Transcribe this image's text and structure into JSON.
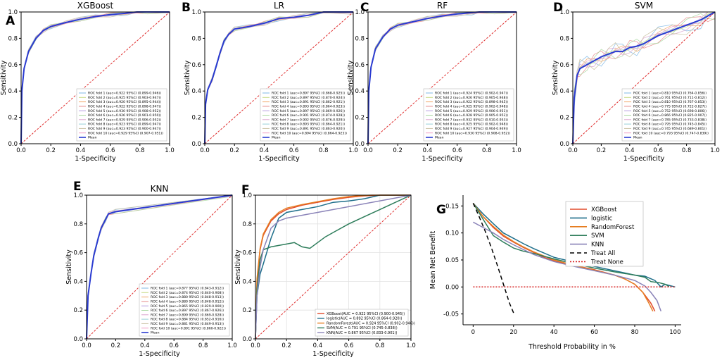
{
  "fold_colors": [
    "#7fb8e6",
    "#c8da86",
    "#f0a86a",
    "#e68a8a",
    "#b7a0e0",
    "#a8d8a0",
    "#dba6cf",
    "#9ad0d8",
    "#c8c0a0",
    "#ee9cc4"
  ],
  "chart_data": [
    {
      "id": "A",
      "type": "line",
      "title": "XGBoost",
      "xlabel": "1-Specificity",
      "ylabel": "Sensitivity",
      "xlim": [
        0,
        1
      ],
      "ylim": [
        0,
        1
      ],
      "ticks": [
        "0.0",
        "0.2",
        "0.4",
        "0.6",
        "0.8",
        "1.0"
      ],
      "chance_line": true,
      "mean_curve": {
        "name": "Mean",
        "color": "#2a3bd1",
        "x": [
          0,
          0.005,
          0.02,
          0.05,
          0.1,
          0.15,
          0.2,
          0.3,
          0.4,
          0.5,
          0.6,
          0.7,
          0.78,
          0.85,
          1.0
        ],
        "y": [
          0,
          0.4,
          0.57,
          0.7,
          0.8,
          0.86,
          0.89,
          0.92,
          0.945,
          0.965,
          0.98,
          0.99,
          1.0,
          1.0,
          1.0
        ]
      },
      "folds": [
        {
          "label": "ROC fold    1  (auc=0.922 95%CI  (0.899-0.946))"
        },
        {
          "label": "ROC fold    2  (auc=0.925 95%CI  (0.903-0.947))"
        },
        {
          "label": "ROC fold    3  (auc=0.920 95%CI  (0.895-0.944))"
        },
        {
          "label": "ROC fold    4  (auc=0.922 95%CI  (0.898-0.947))"
        },
        {
          "label": "ROC fold    5  (auc=0.930 95%CI  (0.908-0.952))"
        },
        {
          "label": "ROC fold    6  (auc=0.926 95%CI  (0.901-0.950))"
        },
        {
          "label": "ROC fold    7  (auc=0.929 95%CI  (0.906-0.952))"
        },
        {
          "label": "ROC fold    8  (auc=0.923 95%CI  (0.899-0.947))"
        },
        {
          "label": "ROC fold    9  (auc=0.923 95%CI  (0.900-0.947))"
        },
        {
          "label": "ROC fold   10  (auc=0.929 95%CI  (0.907-0.951))"
        }
      ],
      "mean_label": "Mean"
    },
    {
      "id": "B",
      "type": "line",
      "title": "LR",
      "xlabel": "1-Specificity",
      "ylabel": "Sensitivity",
      "xlim": [
        0,
        1
      ],
      "ylim": [
        0,
        1
      ],
      "ticks": [
        "0.0",
        "0.2",
        "0.4",
        "0.6",
        "0.8",
        "1.0"
      ],
      "chance_line": true,
      "mean_curve": {
        "name": "Mean",
        "color": "#2a3bd1",
        "x": [
          0,
          0.005,
          0.02,
          0.05,
          0.08,
          0.1,
          0.13,
          0.16,
          0.2,
          0.3,
          0.4,
          0.5,
          0.6,
          0.7,
          0.8,
          1.0
        ],
        "y": [
          0,
          0.3,
          0.41,
          0.49,
          0.6,
          0.68,
          0.78,
          0.83,
          0.87,
          0.89,
          0.915,
          0.95,
          0.96,
          0.975,
          1.0,
          1.0
        ]
      },
      "folds": [
        {
          "label": "ROC fold    1  (auc=0.897 95%CI  (0.868-0.925))"
        },
        {
          "label": "ROC fold    2  (auc=0.897 95%CI  (0.870-0.924))"
        },
        {
          "label": "ROC fold    3  (auc=0.891 95%CI  (0.862-0.921))"
        },
        {
          "label": "ROC fold    4  (auc=0.893 95%CI  (0.864-0.923))"
        },
        {
          "label": "ROC fold    5  (auc=0.897 95%CI  (0.869-0.926))"
        },
        {
          "label": "ROC fold    6  (auc=0.901 95%CI  (0.874-0.928))"
        },
        {
          "label": "ROC fold    7  (auc=0.902 95%CI  (0.876-0.929))"
        },
        {
          "label": "ROC fold    8  (auc=0.893 95%CI  (0.864-0.921))"
        },
        {
          "label": "ROC fold    9  (auc=0.891 95%CI  (0.863-0.920))"
        },
        {
          "label": "ROC fold   10  (auc=0.894 95%CI  (0.864-0.923))"
        }
      ],
      "mean_label": "Mean"
    },
    {
      "id": "C",
      "type": "line",
      "title": "RF",
      "xlabel": "1-Specificity",
      "ylabel": "Sensitivity",
      "xlim": [
        0,
        1
      ],
      "ylim": [
        0,
        1
      ],
      "ticks": [
        "0.0",
        "0.2",
        "0.4",
        "0.6",
        "0.8",
        "1.0"
      ],
      "chance_line": true,
      "mean_curve": {
        "name": "Mean",
        "color": "#2a3bd1",
        "x": [
          0,
          0.005,
          0.02,
          0.05,
          0.1,
          0.15,
          0.2,
          0.3,
          0.4,
          0.5,
          0.6,
          0.7,
          0.75,
          0.85,
          1.0
        ],
        "y": [
          0,
          0.4,
          0.58,
          0.72,
          0.81,
          0.87,
          0.9,
          0.925,
          0.95,
          0.97,
          0.985,
          0.995,
          1.0,
          1.0,
          1.0
        ]
      },
      "folds": [
        {
          "label": "ROC fold    1  (auc=0.924 95%CI  (0.902-0.947))"
        },
        {
          "label": "ROC fold    2  (auc=0.926 95%CI  (0.905-0.948))"
        },
        {
          "label": "ROC fold    3  (auc=0.922 95%CI  (0.898-0.945))"
        },
        {
          "label": "ROC fold    4  (auc=0.925 95%CI  (0.902-0.948))"
        },
        {
          "label": "ROC fold    5  (auc=0.929 95%CI  (0.906-0.951))"
        },
        {
          "label": "ROC fold    6  (auc=0.928 95%CI  (0.905-0.952))"
        },
        {
          "label": "ROC fold    7  (auc=0.932 95%CI  (0.910-0.953))"
        },
        {
          "label": "ROC fold    8  (auc=0.925 95%CI  (0.902-0.948))"
        },
        {
          "label": "ROC fold    9  (auc=0.927 95%CI  (0.904-0.949))"
        },
        {
          "label": "ROC fold   10  (auc=0.930 95%CI  (0.908-0.952))"
        }
      ],
      "mean_label": "Mean"
    },
    {
      "id": "D",
      "type": "line",
      "title": "SVM",
      "xlabel": "1-Specificity",
      "ylabel": "Sensitivity",
      "xlim": [
        0,
        1
      ],
      "ylim": [
        0,
        1
      ],
      "ticks": [
        "0.0",
        "0.2",
        "0.4",
        "0.6",
        "0.8",
        "1.0"
      ],
      "chance_line": true,
      "mean_curve": {
        "name": "Mean",
        "color": "#2a3bd1",
        "x": [
          0,
          0.01,
          0.03,
          0.05,
          0.1,
          0.15,
          0.2,
          0.25,
          0.3,
          0.35,
          0.4,
          0.45,
          0.5,
          0.6,
          0.7,
          0.8,
          0.9,
          0.95,
          1.0
        ],
        "y": [
          0,
          0.35,
          0.52,
          0.57,
          0.6,
          0.63,
          0.66,
          0.68,
          0.7,
          0.7,
          0.73,
          0.74,
          0.76,
          0.82,
          0.86,
          0.9,
          0.94,
          0.97,
          1.0
        ]
      },
      "folds": [
        {
          "label": "ROC fold    1  (auc=0.810 95%CI  (0.764-0.856))"
        },
        {
          "label": "ROC fold    2  (auc=0.761 95%CI  (0.711-0.812))"
        },
        {
          "label": "ROC fold    3  (auc=0.810 95%CI  (0.767-0.853))"
        },
        {
          "label": "ROC fold    4  (auc=0.775 95%CI  (0.722-0.827))"
        },
        {
          "label": "ROC fold    5  (auc=0.752 95%CI  (0.698-0.806))"
        },
        {
          "label": "ROC fold    6  (auc=0.866 95%CI  (0.825-0.907))"
        },
        {
          "label": "ROC fold    7  (auc=0.785 95%CI  (0.733-0.838))"
        },
        {
          "label": "ROC fold    8  (auc=0.795 95%CI  (0.745-0.845))"
        },
        {
          "label": "ROC fold    9  (auc=0.745 95%CI  (0.689-0.801))"
        },
        {
          "label": "ROC fold   10  (auc=0.793 95%CI  (0.747-0.839))"
        }
      ],
      "mean_label": "Mean"
    },
    {
      "id": "E",
      "type": "line",
      "title": "KNN",
      "xlabel": "1-Specificity",
      "ylabel": "Sensitivity",
      "xlim": [
        0,
        1
      ],
      "ylim": [
        0,
        1
      ],
      "ticks": [
        "0.0",
        "0.2",
        "0.4",
        "0.6",
        "0.8",
        "1.0"
      ],
      "chance_line": true,
      "mean_curve": {
        "name": "Mean",
        "color": "#2a3bd1",
        "x": [
          0,
          0.01,
          0.03,
          0.05,
          0.08,
          0.1,
          0.13,
          0.15,
          0.2,
          1.0
        ],
        "y": [
          0,
          0.3,
          0.45,
          0.58,
          0.7,
          0.77,
          0.83,
          0.87,
          0.885,
          1.0
        ]
      },
      "folds": [
        {
          "label": "ROC fold    1  (auc=0.877 95%CI  (0.843-0.912))"
        },
        {
          "label": "ROC fold    2  (auc=0.874 95%CI  (0.840-0.908))"
        },
        {
          "label": "ROC fold    3  (auc=0.880 95%CI  (0.848-0.913))"
        },
        {
          "label": "ROC fold    4  (auc=0.880 95%CI  (0.848-0.912))"
        },
        {
          "label": "ROC fold    5  (auc=0.865 95%CI  (0.829-0.900))"
        },
        {
          "label": "ROC fold    6  (auc=0.897 95%CI  (0.867-0.926))"
        },
        {
          "label": "ROC fold    7  (auc=0.899 95%CI  (0.869-0.928))"
        },
        {
          "label": "ROC fold    8  (auc=0.884 95%CI  (0.852-0.916))"
        },
        {
          "label": "ROC fold    9  (auc=0.881 95%CI  (0.849-0.913))"
        },
        {
          "label": "ROC fold   10  (auc=0.891 95%CI  (0.860-0.922))"
        }
      ],
      "mean_label": "Mean"
    },
    {
      "id": "F",
      "type": "line",
      "title": "",
      "xlabel": "1-Specificity",
      "ylabel": "Sensitivity",
      "xlim": [
        0,
        1
      ],
      "ylim": [
        0,
        1
      ],
      "ticks": [
        "0.0",
        "0.2",
        "0.4",
        "0.6",
        "0.8",
        "1.0"
      ],
      "grid": true,
      "chance_line": true,
      "series": [
        {
          "name": "XGBoost(AUC = 0.922 95%CI  (0.900-0.945))",
          "color": "#e24a2a",
          "x": [
            0,
            0.01,
            0.03,
            0.05,
            0.1,
            0.15,
            0.2,
            0.3,
            0.4,
            0.5,
            0.6,
            0.7,
            0.8,
            1.0
          ],
          "y": [
            0,
            0.4,
            0.62,
            0.72,
            0.82,
            0.87,
            0.9,
            0.93,
            0.95,
            0.97,
            0.985,
            0.995,
            1.0,
            1.0
          ]
        },
        {
          "name": "logistic(AUC = 0.892 95%CI  (0.864-0.920))",
          "color": "#1f6f8b",
          "x": [
            0,
            0.01,
            0.03,
            0.05,
            0.1,
            0.15,
            0.2,
            0.3,
            0.4,
            0.5,
            0.6,
            0.7,
            0.8,
            1.0
          ],
          "y": [
            0,
            0.3,
            0.45,
            0.52,
            0.7,
            0.84,
            0.88,
            0.9,
            0.92,
            0.95,
            0.96,
            0.975,
            1.0,
            1.0
          ]
        },
        {
          "name": "RandomForest(AUC = 0.924 95%CI  (0.902-0.946))",
          "color": "#e67e22",
          "x": [
            0,
            0.01,
            0.03,
            0.05,
            0.1,
            0.15,
            0.2,
            0.3,
            0.4,
            0.5,
            0.6,
            0.7,
            0.75,
            1.0
          ],
          "y": [
            0,
            0.42,
            0.63,
            0.73,
            0.83,
            0.88,
            0.91,
            0.935,
            0.955,
            0.975,
            0.99,
            0.998,
            1.0,
            1.0
          ]
        },
        {
          "name": "SVM(AUC = 0.791 95%CI  (0.745-0.838))",
          "color": "#2e7d5b",
          "x": [
            0,
            0.01,
            0.03,
            0.05,
            0.1,
            0.15,
            0.2,
            0.25,
            0.3,
            0.35,
            0.4,
            0.45,
            0.5,
            0.6,
            0.7,
            0.8,
            0.9,
            1.0
          ],
          "y": [
            0,
            0.35,
            0.55,
            0.62,
            0.64,
            0.65,
            0.66,
            0.67,
            0.64,
            0.63,
            0.67,
            0.71,
            0.74,
            0.8,
            0.85,
            0.9,
            0.95,
            1.0
          ]
        },
        {
          "name": "KNN(AUC = 0.867 95%CI  (0.833-0.901))",
          "color": "#8a83b8",
          "x": [
            0,
            0.01,
            0.03,
            0.05,
            0.1,
            0.15,
            0.2,
            1.0
          ],
          "y": [
            0,
            0.3,
            0.5,
            0.62,
            0.77,
            0.82,
            0.84,
            1.0
          ]
        }
      ]
    },
    {
      "id": "G",
      "type": "line",
      "title": "",
      "xlabel": "Threshold Probability in %",
      "ylabel": "Mean Net Benefit",
      "xlim": [
        -5,
        103
      ],
      "ylim": [
        -0.07,
        0.17
      ],
      "xticks": [
        0,
        20,
        40,
        60,
        80,
        100
      ],
      "yticks": [
        0.15,
        0.1,
        0.05,
        0.0,
        -0.05
      ],
      "ytick_labels": [
        "0.15",
        "0.10",
        "0.05",
        "0.00",
        "-0.05"
      ],
      "series": [
        {
          "name": "XGBoost",
          "color": "#e24a2a",
          "dash": "",
          "x": [
            0,
            5,
            10,
            15,
            20,
            25,
            30,
            35,
            40,
            50,
            60,
            70,
            75,
            80,
            84,
            88,
            90
          ],
          "y": [
            0.155,
            0.13,
            0.11,
            0.094,
            0.083,
            0.073,
            0.064,
            0.055,
            0.048,
            0.04,
            0.032,
            0.022,
            0.015,
            0.005,
            -0.01,
            -0.03,
            -0.045
          ]
        },
        {
          "name": "logistic",
          "color": "#1f6f8b",
          "dash": "",
          "x": [
            0,
            5,
            10,
            15,
            20,
            25,
            30,
            40,
            50,
            60,
            70,
            80,
            85,
            90,
            93,
            95,
            100
          ],
          "y": [
            0.155,
            0.135,
            0.117,
            0.1,
            0.09,
            0.08,
            0.071,
            0.055,
            0.046,
            0.038,
            0.03,
            0.022,
            0.02,
            0.012,
            0.0,
            0.005,
            0.0
          ]
        },
        {
          "name": "RandomForest",
          "color": "#e67e22",
          "dash": "",
          "x": [
            0,
            5,
            10,
            15,
            20,
            25,
            30,
            40,
            50,
            60,
            70,
            75,
            80,
            84,
            87,
            89
          ],
          "y": [
            0.155,
            0.13,
            0.112,
            0.096,
            0.084,
            0.074,
            0.065,
            0.05,
            0.04,
            0.031,
            0.022,
            0.015,
            0.005,
            -0.01,
            -0.03,
            -0.045
          ]
        },
        {
          "name": "SVM",
          "color": "#2e7d5b",
          "dash": "",
          "x": [
            0,
            5,
            10,
            15,
            20,
            25,
            30,
            40,
            50,
            60,
            70,
            80,
            85,
            88,
            92,
            95,
            97
          ],
          "y": [
            0.155,
            0.125,
            0.095,
            0.083,
            0.072,
            0.066,
            0.062,
            0.052,
            0.043,
            0.035,
            0.028,
            0.022,
            0.018,
            0.01,
            0.008,
            0.005,
            0.001
          ]
        },
        {
          "name": "KNN",
          "color": "#8a83b8",
          "dash": "",
          "x": [
            0,
            5,
            10,
            15,
            20,
            30,
            40,
            50,
            60,
            70,
            80,
            85,
            88,
            91,
            93
          ],
          "y": [
            0.12,
            0.11,
            0.1,
            0.088,
            0.078,
            0.06,
            0.047,
            0.038,
            0.03,
            0.022,
            0.012,
            0.002,
            -0.01,
            -0.025,
            -0.045
          ]
        },
        {
          "name": "Treat All",
          "color": "#000000",
          "dash": "6,4",
          "x": [
            0,
            3,
            6,
            9,
            12,
            15,
            18,
            20
          ],
          "y": [
            0.155,
            0.13,
            0.103,
            0.073,
            0.04,
            0.005,
            -0.03,
            -0.048
          ]
        },
        {
          "name": "Treat None",
          "color": "#d62020",
          "dash": "2,2",
          "x": [
            0,
            100
          ],
          "y": [
            0,
            0
          ]
        }
      ]
    }
  ]
}
